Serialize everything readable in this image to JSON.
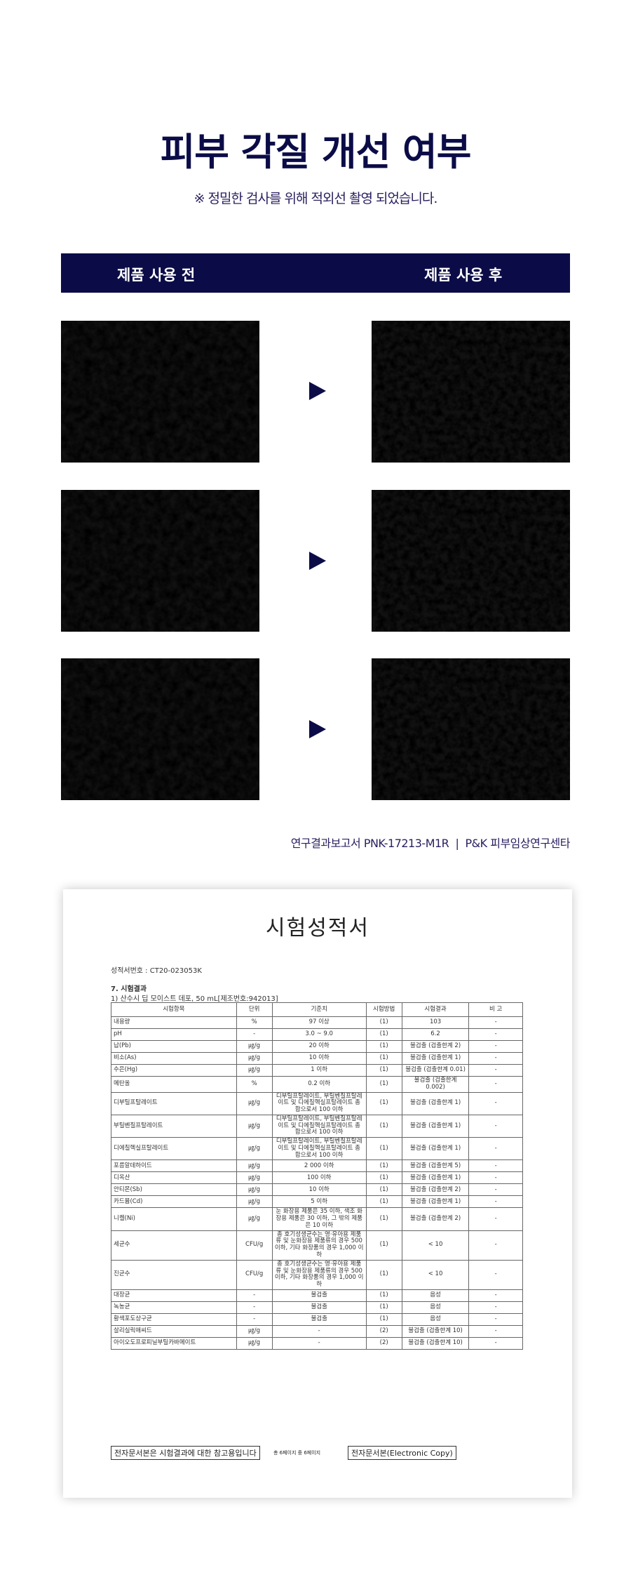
{
  "header": {
    "title": "피부 각질 개선 여부",
    "subtitle": "※ 정밀한 검사를 위해 적외선 촬영 되었습니다."
  },
  "comparison": {
    "before_label": "제품 사용 전",
    "after_label": "제품 사용 후",
    "rows": 3,
    "arrow_icon": "triangle-right-icon",
    "accent": "#0b0c47"
  },
  "caption": "연구결과보고서 PNK-17213-M1R  |  P&K 피부임상연구센타",
  "report": {
    "title": "시험성적서",
    "cert_no": "성적서번호 :  CT20-023053K",
    "section": "7. 시험결과",
    "product": "1)  산수시 딥 모이스트 데포, 50 mL[제조번호:942013]",
    "headers": [
      "시험항목",
      "단위",
      "기준치",
      "시험방법",
      "시험결과",
      "비  고"
    ],
    "rows": [
      [
        "내용량",
        "%",
        "97 이상",
        "(1)",
        "103",
        "-"
      ],
      [
        "pH",
        "-",
        "3.0 ~ 9.0",
        "(1)",
        "6.2",
        "-"
      ],
      [
        "납(Pb)",
        "㎍/g",
        "20 이하",
        "(1)",
        "불검출 (검출한계 2)",
        "-"
      ],
      [
        "비소(As)",
        "㎍/g",
        "10 이하",
        "(1)",
        "불검출 (검출한계 1)",
        "-"
      ],
      [
        "수은(Hg)",
        "㎍/g",
        "1 이하",
        "(1)",
        "불검출 (검출한계 0.01)",
        "-"
      ],
      [
        "메탄올",
        "%",
        "0.2 이하",
        "(1)",
        "불검출 (검출한계 0.002)",
        "-"
      ],
      [
        "디부틸프탈레이트",
        "㎍/g",
        "디부틸프탈레이트, 부틸벤질프탈레이트 및 디에칠헥실프탈레이트 총 합으로서 100 이하",
        "(1)",
        "불검출 (검출한계 1)",
        "-"
      ],
      [
        "부틸벤질프탈레이트",
        "㎍/g",
        "디부틸프탈레이트, 부틸벤질프탈레이트 및 디에칠헥실프탈레이트 총 합으로서 100 이하",
        "(1)",
        "불검출 (검출한계 1)",
        "-"
      ],
      [
        "디에칠헥실프탈레이트",
        "㎍/g",
        "디부틸프탈레이트, 부틸벤질프탈레이트 및 디에칠헥실프탈레이트 총 합으로서 100 이하",
        "(1)",
        "불검출 (검출한계 1)",
        "-"
      ],
      [
        "포름알데하이드",
        "㎍/g",
        "2 000 이하",
        "(1)",
        "불검출 (검출한계 5)",
        "-"
      ],
      [
        "디옥산",
        "㎍/g",
        "100 이하",
        "(1)",
        "불검출 (검출한계 1)",
        "-"
      ],
      [
        "안티몬(Sb)",
        "㎍/g",
        "10 이하",
        "(1)",
        "불검출 (검출한계 2)",
        "-"
      ],
      [
        "카드뮴(Cd)",
        "㎍/g",
        "5 이하",
        "(1)",
        "불검출 (검출한계 1)",
        "-"
      ],
      [
        "니켈(Ni)",
        "㎍/g",
        "눈 화장용 제품은 35 이하, 색조 화장용 제품은 30 이하, 그 밖의 제품은 10 이하",
        "(1)",
        "불검출 (검출한계 2)",
        "-"
      ],
      [
        "세균수",
        "CFU/g",
        "총 호기성생균수는 영·유아용 제품류 및 눈화장용 제품류의 경우 500 이하, 기타 화장품의 경우 1,000 이하",
        "(1)",
        "< 10",
        "-"
      ],
      [
        "진균수",
        "CFU/g",
        "총 호기성생균수는 영·유아용 제품류 및 눈화장용 제품류의 경우 500 이하, 기타 화장품의 경우 1,000 이하",
        "(1)",
        "< 10",
        "-"
      ],
      [
        "대장균",
        "-",
        "불검출",
        "(1)",
        "음성",
        "-"
      ],
      [
        "녹농균",
        "-",
        "불검출",
        "(1)",
        "음성",
        "-"
      ],
      [
        "황색포도상구균",
        "-",
        "불검출",
        "(1)",
        "음성",
        "-"
      ],
      [
        "살리실릭애씨드",
        "㎍/g",
        "-",
        "(2)",
        "불검출 (검출한계 10)",
        "-"
      ],
      [
        "아이오도프로피닐부틸카바메이트",
        "㎍/g",
        "-",
        "(2)",
        "불검출 (검출한계 10)",
        "-"
      ]
    ],
    "footer_left": "전자문서본은 시험결과에 대한 참고용입니다",
    "footer_page": "총 6페이지 중 6페이지",
    "footer_right": "전자문서본(Electronic Copy)"
  }
}
